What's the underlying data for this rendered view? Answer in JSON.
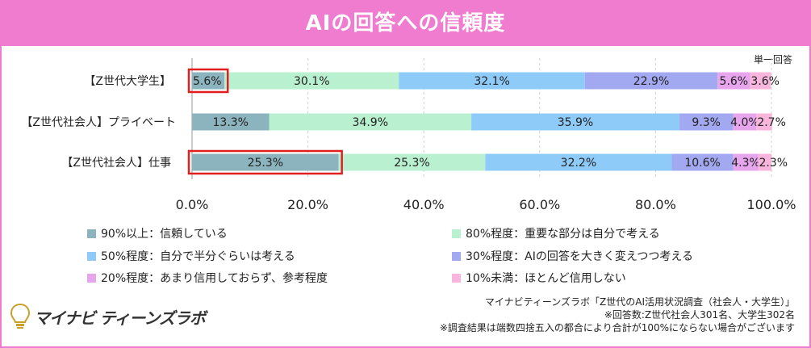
{
  "title": "AIの回答への信頼度",
  "note_single": "単一回答",
  "chart_data": {
    "type": "bar",
    "orientation": "horizontal",
    "stacked": true,
    "categories": [
      "【Z世代大学生】",
      "【Z世代社会人】プライベート",
      "【Z世代社会人】仕事"
    ],
    "series": [
      {
        "name": "90%以上：信頼している",
        "color": "#8cb4be",
        "values": [
          5.6,
          13.3,
          25.3
        ]
      },
      {
        "name": "80%程度：重要な部分は自分で考える",
        "color": "#b9f0cf",
        "values": [
          30.1,
          34.9,
          25.3
        ]
      },
      {
        "name": "50%程度：自分で半分ぐらいは考える",
        "color": "#8fcbf8",
        "values": [
          32.1,
          35.9,
          32.2
        ]
      },
      {
        "name": "30%程度：AIの回答を大きく変えつつ考える",
        "color": "#a3a9f1",
        "values": [
          22.9,
          9.3,
          10.6
        ]
      },
      {
        "name": "20%程度：あまり信用しておらず、参考程度",
        "color": "#e7a5ee",
        "values": [
          5.6,
          4.0,
          4.3
        ]
      },
      {
        "name": "10%未満：ほとんど信用しない",
        "color": "#f8b6dc",
        "values": [
          3.6,
          2.7,
          2.3
        ]
      }
    ],
    "value_labels": [
      [
        "5.6%",
        "30.1%",
        "32.1%",
        "22.9%",
        "5.6%",
        "3.6%"
      ],
      [
        "13.3%",
        "34.9%",
        "35.9%",
        "9.3%",
        "4.0%",
        "2.7%"
      ],
      [
        "25.3%",
        "25.3%",
        "32.2%",
        "10.6%",
        "4.3%",
        "2.3%"
      ]
    ],
    "xlim": [
      0,
      100
    ],
    "xticks": [
      "0.0%",
      "20.0%",
      "40.0%",
      "60.0%",
      "80.0%",
      "100.0%"
    ],
    "highlight": [
      [
        0,
        0
      ],
      [
        2,
        0
      ]
    ],
    "highlight_color": "#e02020",
    "grid": true
  },
  "notes": [
    "マイナビティーンズラボ「Z世代のAI活用状況調査（社会人・大学生）」",
    "※回答数:Z世代社会人301名、大学生302名",
    "※調査結果は端数四捨五入の都合により合計が100%にならない場合がございます"
  ],
  "logo": {
    "text": "マイナビ ティーンズラボ",
    "icon": "lightbulb-icon"
  }
}
